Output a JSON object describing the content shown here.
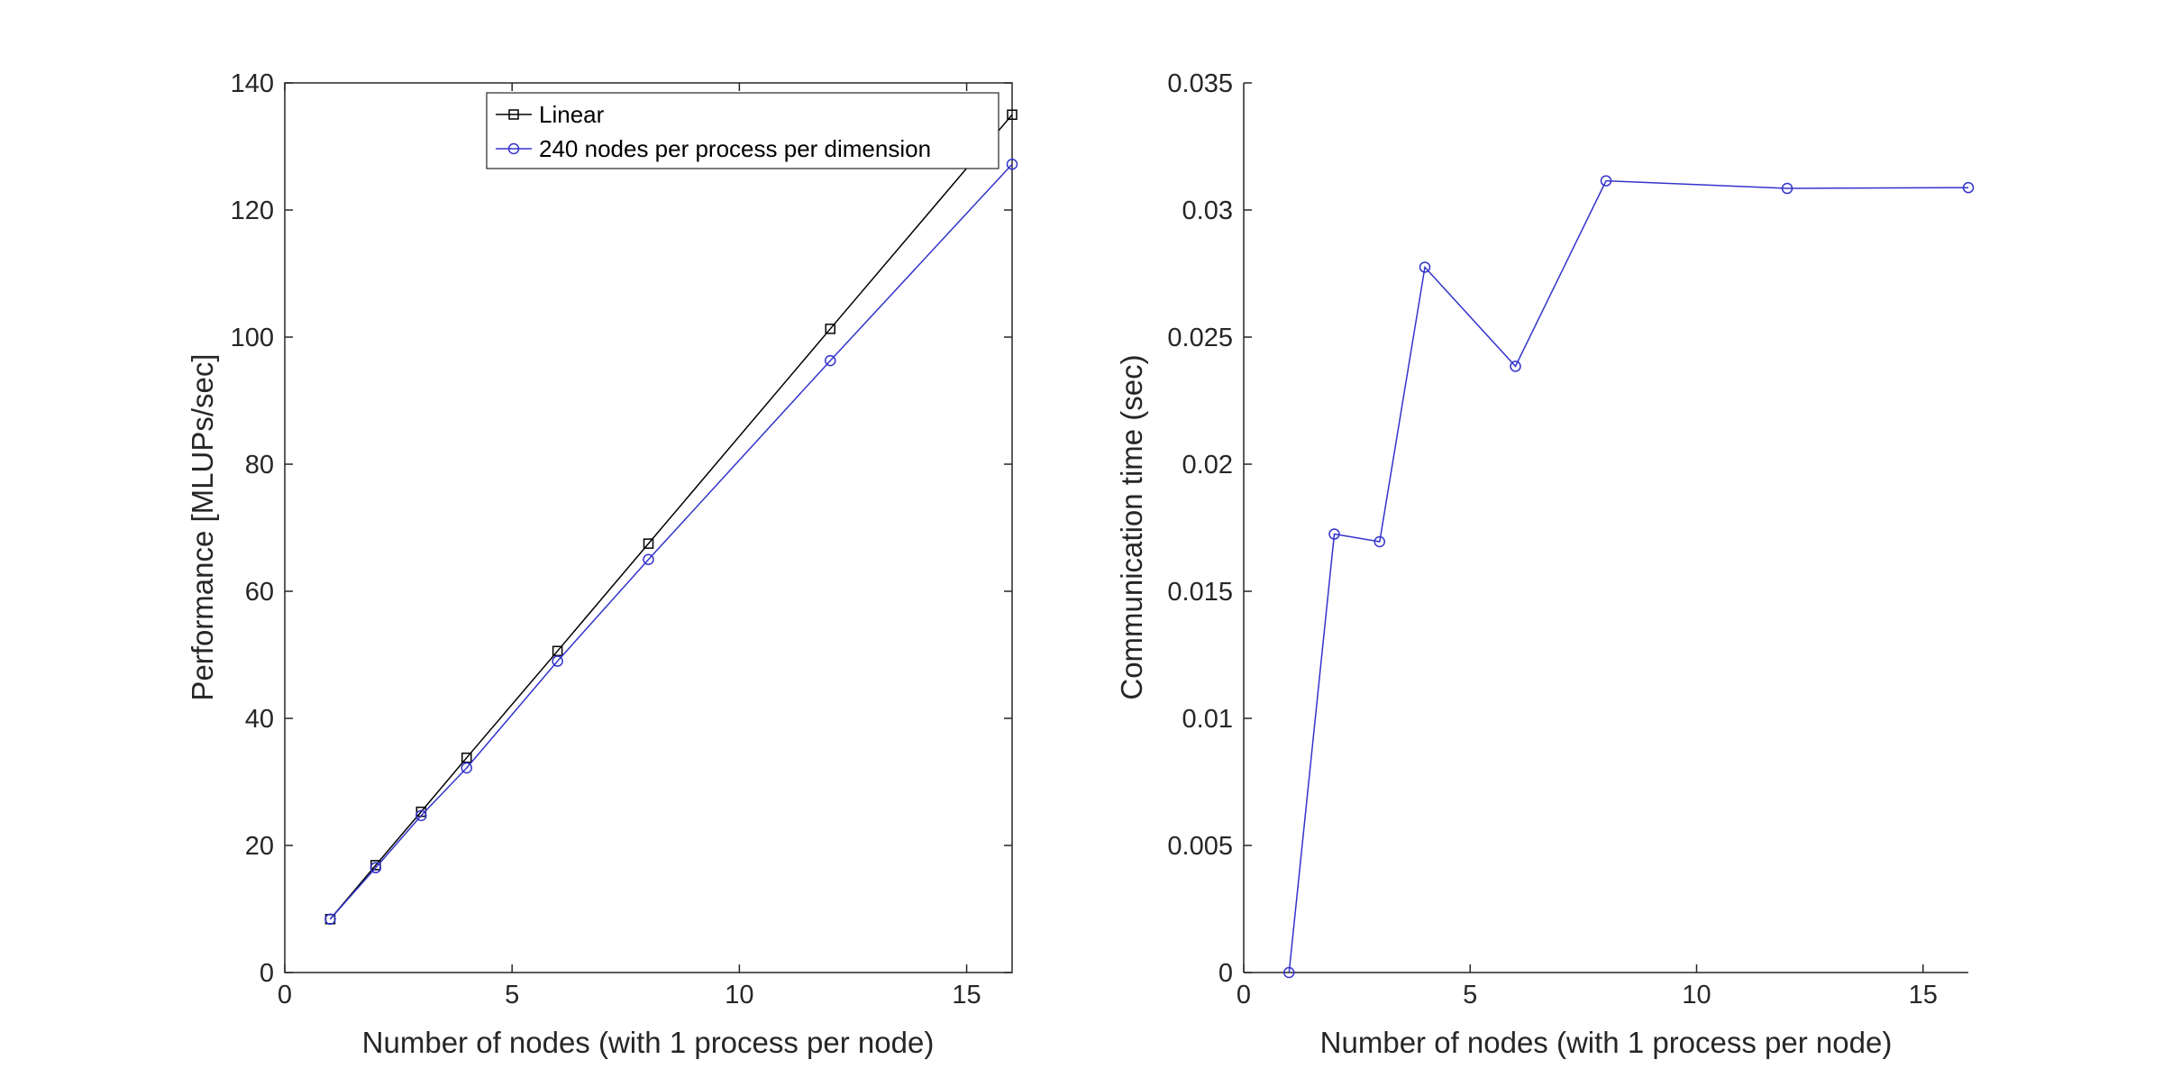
{
  "colors": {
    "axis": "#262626",
    "series_linear": "#000000",
    "series_240": "#3333cc"
  },
  "chart_data": [
    {
      "type": "line",
      "xlabel": "Number of nodes (with 1 process per node)",
      "ylabel": "Performance [MLUPs/sec]",
      "xlim": [
        0,
        16
      ],
      "ylim": [
        0,
        140
      ],
      "xticks": [
        "0",
        "5",
        "10",
        "15"
      ],
      "yticks": [
        "0",
        "20",
        "40",
        "60",
        "80",
        "100",
        "120",
        "140"
      ],
      "grid": false,
      "legend_position": "top-right",
      "series": [
        {
          "name": "Linear",
          "marker": "square",
          "x": [
            1,
            2,
            3,
            4,
            6,
            8,
            12,
            16
          ],
          "y": [
            8.4,
            16.9,
            25.3,
            33.8,
            50.6,
            67.5,
            101.3,
            135.0
          ]
        },
        {
          "name": "240 nodes per process per dimension",
          "marker": "circle",
          "x": [
            1,
            2,
            3,
            4,
            6,
            8,
            12,
            16
          ],
          "y": [
            8.4,
            16.5,
            24.7,
            32.2,
            49.0,
            65.0,
            96.3,
            127.2
          ]
        }
      ]
    },
    {
      "type": "line",
      "xlabel": "Number of nodes (with 1 process per node)",
      "ylabel": "Communication time (sec)",
      "xlim": [
        0,
        16
      ],
      "ylim": [
        0,
        0.035
      ],
      "xticks": [
        "0",
        "5",
        "10",
        "15"
      ],
      "yticks": [
        "0",
        "0.005",
        "0.01",
        "0.015",
        "0.02",
        "0.025",
        "0.03",
        "0.035"
      ],
      "grid": false,
      "series": [
        {
          "marker": "circle",
          "x": [
            1,
            2,
            3,
            4,
            6,
            8,
            12,
            16
          ],
          "y": [
            0.0,
            0.01725,
            0.01695,
            0.02775,
            0.02385,
            0.03115,
            0.03085,
            0.03088
          ]
        }
      ]
    }
  ]
}
